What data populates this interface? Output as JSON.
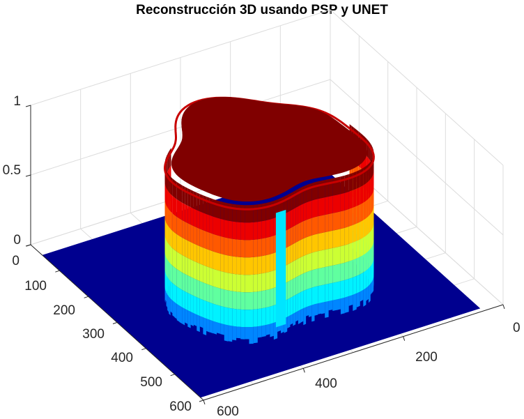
{
  "chart_data": {
    "type": "surface",
    "title": "Reconstrucción 3D usando PSP y UNET",
    "xlabel": "",
    "ylabel": "",
    "zlabel": "",
    "x_ticks": [
      "0",
      "200",
      "400",
      "600"
    ],
    "y_ticks": [
      "0",
      "100",
      "200",
      "300",
      "400",
      "500",
      "600"
    ],
    "z_ticks": [
      "0",
      "0.5",
      "1"
    ],
    "xlim": [
      0,
      600
    ],
    "ylim": [
      0,
      600
    ],
    "zlim": [
      0,
      1
    ],
    "colormap": "jet",
    "grid": true,
    "description_values": {
      "base_plane_height": 0,
      "top_plateau_height": 1.0,
      "object_center_x": 330,
      "object_center_y": 330
    },
    "colors": {
      "base": "#00008f",
      "top": "#800000"
    }
  }
}
